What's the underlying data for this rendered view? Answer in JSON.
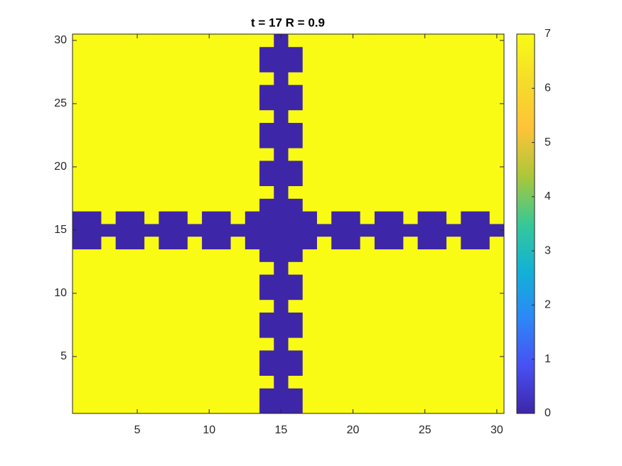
{
  "chart_data": {
    "type": "heatmap",
    "title": "t = 17 R = 0.9",
    "x": [
      1,
      2,
      3,
      4,
      5,
      6,
      7,
      8,
      9,
      10,
      11,
      12,
      13,
      14,
      15,
      16,
      17,
      18,
      19,
      20,
      21,
      22,
      23,
      24,
      25,
      26,
      27,
      28,
      29,
      30
    ],
    "y": [
      1,
      2,
      3,
      4,
      5,
      6,
      7,
      8,
      9,
      10,
      11,
      12,
      13,
      14,
      15,
      16,
      17,
      18,
      19,
      20,
      21,
      22,
      23,
      24,
      25,
      26,
      27,
      28,
      29,
      30
    ],
    "z": [
      [
        7,
        7,
        7,
        7,
        7,
        7,
        7,
        7,
        7,
        7,
        7,
        7,
        7,
        0,
        0,
        0,
        7,
        7,
        7,
        7,
        7,
        7,
        7,
        7,
        7,
        7,
        7,
        7,
        7,
        7
      ],
      [
        7,
        7,
        7,
        7,
        7,
        7,
        7,
        7,
        7,
        7,
        7,
        7,
        7,
        0,
        0,
        0,
        7,
        7,
        7,
        7,
        7,
        7,
        7,
        7,
        7,
        7,
        7,
        7,
        7,
        7
      ],
      [
        7,
        7,
        7,
        7,
        7,
        7,
        7,
        7,
        7,
        7,
        7,
        7,
        7,
        7,
        0,
        7,
        7,
        7,
        7,
        7,
        7,
        7,
        7,
        7,
        7,
        7,
        7,
        7,
        7,
        7
      ],
      [
        7,
        7,
        7,
        7,
        7,
        7,
        7,
        7,
        7,
        7,
        7,
        7,
        7,
        0,
        0,
        0,
        7,
        7,
        7,
        7,
        7,
        7,
        7,
        7,
        7,
        7,
        7,
        7,
        7,
        7
      ],
      [
        7,
        7,
        7,
        7,
        7,
        7,
        7,
        7,
        7,
        7,
        7,
        7,
        7,
        0,
        0,
        0,
        7,
        7,
        7,
        7,
        7,
        7,
        7,
        7,
        7,
        7,
        7,
        7,
        7,
        7
      ],
      [
        7,
        7,
        7,
        7,
        7,
        7,
        7,
        7,
        7,
        7,
        7,
        7,
        7,
        7,
        0,
        7,
        7,
        7,
        7,
        7,
        7,
        7,
        7,
        7,
        7,
        7,
        7,
        7,
        7,
        7
      ],
      [
        7,
        7,
        7,
        7,
        7,
        7,
        7,
        7,
        7,
        7,
        7,
        7,
        7,
        0,
        0,
        0,
        7,
        7,
        7,
        7,
        7,
        7,
        7,
        7,
        7,
        7,
        7,
        7,
        7,
        7
      ],
      [
        7,
        7,
        7,
        7,
        7,
        7,
        7,
        7,
        7,
        7,
        7,
        7,
        7,
        0,
        0,
        0,
        7,
        7,
        7,
        7,
        7,
        7,
        7,
        7,
        7,
        7,
        7,
        7,
        7,
        7
      ],
      [
        7,
        7,
        7,
        7,
        7,
        7,
        7,
        7,
        7,
        7,
        7,
        7,
        7,
        7,
        0,
        7,
        7,
        7,
        7,
        7,
        7,
        7,
        7,
        7,
        7,
        7,
        7,
        7,
        7,
        7
      ],
      [
        7,
        7,
        7,
        7,
        7,
        7,
        7,
        7,
        7,
        7,
        7,
        7,
        7,
        0,
        0,
        0,
        7,
        7,
        7,
        7,
        7,
        7,
        7,
        7,
        7,
        7,
        7,
        7,
        7,
        7
      ],
      [
        7,
        7,
        7,
        7,
        7,
        7,
        7,
        7,
        7,
        7,
        7,
        7,
        7,
        0,
        0,
        0,
        7,
        7,
        7,
        7,
        7,
        7,
        7,
        7,
        7,
        7,
        7,
        7,
        7,
        7
      ],
      [
        7,
        7,
        7,
        7,
        7,
        7,
        7,
        7,
        7,
        7,
        7,
        7,
        7,
        7,
        0,
        7,
        7,
        7,
        7,
        7,
        7,
        7,
        7,
        7,
        7,
        7,
        7,
        7,
        7,
        7
      ],
      [
        7,
        7,
        7,
        7,
        7,
        7,
        7,
        7,
        7,
        7,
        7,
        7,
        7,
        0,
        0,
        0,
        7,
        7,
        7,
        7,
        7,
        7,
        7,
        7,
        7,
        7,
        7,
        7,
        7,
        7
      ],
      [
        0,
        0,
        7,
        0,
        0,
        7,
        0,
        0,
        7,
        0,
        0,
        7,
        0,
        0,
        0,
        0,
        0,
        7,
        0,
        0,
        7,
        0,
        0,
        7,
        0,
        0,
        7,
        0,
        0,
        7
      ],
      [
        0,
        0,
        0,
        0,
        0,
        0,
        0,
        0,
        0,
        0,
        0,
        0,
        0,
        0,
        0,
        0,
        0,
        0,
        0,
        0,
        0,
        0,
        0,
        0,
        0,
        0,
        0,
        0,
        0,
        0
      ],
      [
        0,
        0,
        7,
        0,
        0,
        7,
        0,
        0,
        7,
        0,
        0,
        7,
        0,
        0,
        0,
        0,
        0,
        7,
        0,
        0,
        7,
        0,
        0,
        7,
        0,
        0,
        7,
        0,
        0,
        7
      ],
      [
        7,
        7,
        7,
        7,
        7,
        7,
        7,
        7,
        7,
        7,
        7,
        7,
        7,
        0,
        0,
        0,
        7,
        7,
        7,
        7,
        7,
        7,
        7,
        7,
        7,
        7,
        7,
        7,
        7,
        7
      ],
      [
        7,
        7,
        7,
        7,
        7,
        7,
        7,
        7,
        7,
        7,
        7,
        7,
        7,
        7,
        0,
        7,
        7,
        7,
        7,
        7,
        7,
        7,
        7,
        7,
        7,
        7,
        7,
        7,
        7,
        7
      ],
      [
        7,
        7,
        7,
        7,
        7,
        7,
        7,
        7,
        7,
        7,
        7,
        7,
        7,
        0,
        0,
        0,
        7,
        7,
        7,
        7,
        7,
        7,
        7,
        7,
        7,
        7,
        7,
        7,
        7,
        7
      ],
      [
        7,
        7,
        7,
        7,
        7,
        7,
        7,
        7,
        7,
        7,
        7,
        7,
        7,
        0,
        0,
        0,
        7,
        7,
        7,
        7,
        7,
        7,
        7,
        7,
        7,
        7,
        7,
        7,
        7,
        7
      ],
      [
        7,
        7,
        7,
        7,
        7,
        7,
        7,
        7,
        7,
        7,
        7,
        7,
        7,
        7,
        0,
        7,
        7,
        7,
        7,
        7,
        7,
        7,
        7,
        7,
        7,
        7,
        7,
        7,
        7,
        7
      ],
      [
        7,
        7,
        7,
        7,
        7,
        7,
        7,
        7,
        7,
        7,
        7,
        7,
        7,
        0,
        0,
        0,
        7,
        7,
        7,
        7,
        7,
        7,
        7,
        7,
        7,
        7,
        7,
        7,
        7,
        7
      ],
      [
        7,
        7,
        7,
        7,
        7,
        7,
        7,
        7,
        7,
        7,
        7,
        7,
        7,
        0,
        0,
        0,
        7,
        7,
        7,
        7,
        7,
        7,
        7,
        7,
        7,
        7,
        7,
        7,
        7,
        7
      ],
      [
        7,
        7,
        7,
        7,
        7,
        7,
        7,
        7,
        7,
        7,
        7,
        7,
        7,
        7,
        0,
        7,
        7,
        7,
        7,
        7,
        7,
        7,
        7,
        7,
        7,
        7,
        7,
        7,
        7,
        7
      ],
      [
        7,
        7,
        7,
        7,
        7,
        7,
        7,
        7,
        7,
        7,
        7,
        7,
        7,
        0,
        0,
        0,
        7,
        7,
        7,
        7,
        7,
        7,
        7,
        7,
        7,
        7,
        7,
        7,
        7,
        7
      ],
      [
        7,
        7,
        7,
        7,
        7,
        7,
        7,
        7,
        7,
        7,
        7,
        7,
        7,
        0,
        0,
        0,
        7,
        7,
        7,
        7,
        7,
        7,
        7,
        7,
        7,
        7,
        7,
        7,
        7,
        7
      ],
      [
        7,
        7,
        7,
        7,
        7,
        7,
        7,
        7,
        7,
        7,
        7,
        7,
        7,
        7,
        0,
        7,
        7,
        7,
        7,
        7,
        7,
        7,
        7,
        7,
        7,
        7,
        7,
        7,
        7,
        7
      ],
      [
        7,
        7,
        7,
        7,
        7,
        7,
        7,
        7,
        7,
        7,
        7,
        7,
        7,
        0,
        0,
        0,
        7,
        7,
        7,
        7,
        7,
        7,
        7,
        7,
        7,
        7,
        7,
        7,
        7,
        7
      ],
      [
        7,
        7,
        7,
        7,
        7,
        7,
        7,
        7,
        7,
        7,
        7,
        7,
        7,
        0,
        0,
        0,
        7,
        7,
        7,
        7,
        7,
        7,
        7,
        7,
        7,
        7,
        7,
        7,
        7,
        7
      ],
      [
        7,
        7,
        7,
        7,
        7,
        7,
        7,
        7,
        7,
        7,
        7,
        7,
        7,
        7,
        0,
        7,
        7,
        7,
        7,
        7,
        7,
        7,
        7,
        7,
        7,
        7,
        7,
        7,
        7,
        7
      ]
    ],
    "xlim": [
      0.5,
      30.5
    ],
    "ylim": [
      0.5,
      30.5
    ],
    "xticks": [
      5,
      10,
      15,
      20,
      25,
      30
    ],
    "yticks": [
      5,
      10,
      15,
      20,
      25,
      30
    ],
    "clim": [
      0,
      7
    ],
    "cticks": [
      0,
      1,
      2,
      3,
      4,
      5,
      6,
      7
    ],
    "colormap": [
      "#3e26a8",
      "#4850f4",
      "#2d87f7",
      "#12b1d6",
      "#37c897",
      "#abc739",
      "#fec338",
      "#f5dc2a",
      "#f9fb14"
    ]
  }
}
